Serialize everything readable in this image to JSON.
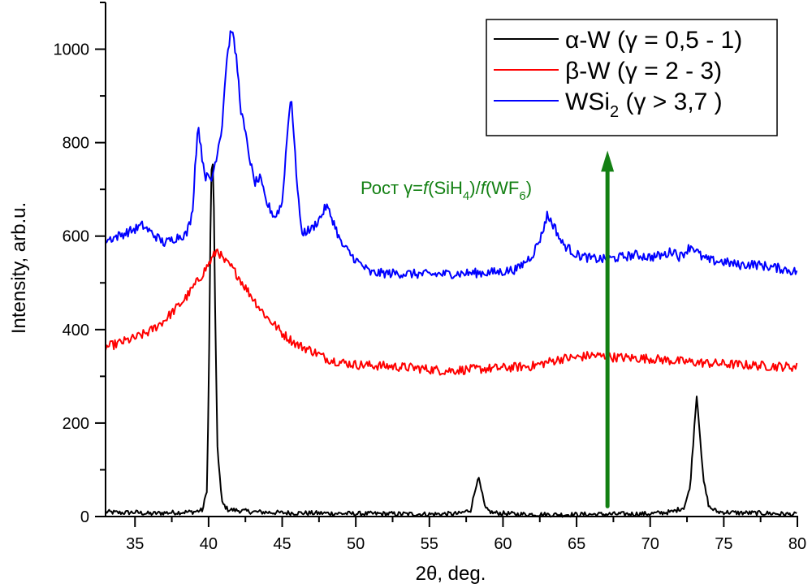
{
  "chart_data": {
    "type": "line",
    "title": "",
    "xlabel": "2θ, deg.",
    "ylabel": "Intensity, arb.u.",
    "xlim": [
      33,
      80
    ],
    "ylim": [
      0,
      1100
    ],
    "x_ticks": [
      35,
      40,
      45,
      50,
      55,
      60,
      65,
      70,
      75,
      80
    ],
    "x_tick_labels": [
      "35",
      "40",
      "45",
      "50",
      "55",
      "60",
      "65",
      "70",
      "75",
      "80"
    ],
    "y_ticks": [
      0,
      200,
      400,
      600,
      800,
      1000
    ],
    "y_tick_labels": [
      "0",
      "200",
      "400",
      "600",
      "800",
      "1000"
    ],
    "grid": false,
    "legend_position": "top-right",
    "series": [
      {
        "name": "α-W (γ = 0,5 - 1)",
        "legend_parts": {
          "main": "α-W (γ = 0,5 - 1)",
          "sub": "",
          "tail": ""
        },
        "color": "#000000",
        "x": [
          33,
          34,
          35,
          36,
          37,
          38,
          39,
          39.6,
          39.9,
          40.05,
          40.15,
          40.25,
          40.35,
          40.45,
          40.6,
          40.9,
          41.3,
          42,
          43,
          45,
          48,
          50,
          52,
          55,
          57,
          57.8,
          58.1,
          58.3,
          58.5,
          58.8,
          59.3,
          61,
          64,
          67,
          70,
          71.5,
          72.3,
          72.7,
          72.95,
          73.15,
          73.35,
          73.6,
          74,
          74.6,
          76,
          78,
          80
        ],
        "y": [
          10,
          8,
          9,
          6,
          8,
          9,
          10,
          14,
          60,
          380,
          700,
          778,
          690,
          420,
          150,
          30,
          15,
          13,
          10,
          8,
          7,
          6,
          6,
          5,
          6,
          14,
          55,
          86,
          60,
          16,
          8,
          5,
          4,
          5,
          6,
          10,
          20,
          60,
          170,
          262,
          190,
          80,
          20,
          10,
          8,
          7,
          4
        ]
      },
      {
        "name": "β-W (γ = 2 - 3)",
        "legend_parts": {
          "main": "β-W (γ = 2 - 3)",
          "sub": "",
          "tail": ""
        },
        "color": "#ff0000",
        "x": [
          33,
          34,
          35,
          36,
          37,
          38,
          38.5,
          39,
          39.5,
          40,
          40.3,
          40.6,
          41,
          41.5,
          42,
          42.5,
          43,
          43.5,
          44,
          44.5,
          45,
          45.5,
          46,
          47,
          48,
          49,
          50,
          52,
          54,
          56,
          58,
          60,
          62,
          63,
          64,
          65,
          66,
          67,
          68,
          70,
          72,
          74,
          76,
          78,
          80
        ],
        "y": [
          362,
          372,
          382,
          396,
          420,
          452,
          470,
          492,
          515,
          540,
          555,
          572,
          548,
          535,
          515,
          490,
          468,
          445,
          425,
          410,
          392,
          380,
          368,
          355,
          338,
          330,
          325,
          322,
          318,
          312,
          315,
          318,
          322,
          330,
          338,
          340,
          345,
          342,
          340,
          338,
          332,
          328,
          325,
          322,
          320
        ]
      },
      {
        "name": "WSi2 (γ > 3,7 )",
        "legend_parts": {
          "main": "WSi",
          "sub": "2",
          "tail": " (γ > 3,7 )"
        },
        "color": "#0000ff",
        "x": [
          33,
          34,
          35,
          35.5,
          36,
          37,
          38,
          38.5,
          38.9,
          39.1,
          39.3,
          39.5,
          39.8,
          40.2,
          40.5,
          40.9,
          41.2,
          41.55,
          41.9,
          42.2,
          42.6,
          43.1,
          43.5,
          43.9,
          44.5,
          45,
          45.3,
          45.6,
          45.9,
          46.3,
          47,
          47.6,
          48,
          48.5,
          49,
          50,
          51,
          53,
          55,
          57,
          59,
          60,
          61,
          62,
          62.6,
          63,
          63.5,
          64,
          65,
          66,
          67,
          68,
          69,
          70,
          71,
          71.6,
          72,
          72.8,
          73.5,
          74,
          75,
          76,
          77,
          78,
          79,
          80
        ],
        "y": [
          591,
          602,
          615,
          623,
          610,
          585,
          600,
          604,
          650,
          760,
          841,
          780,
          728,
          720,
          766,
          832,
          970,
          1047,
          978,
          870,
          801,
          714,
          723,
          674,
          640,
          671,
          800,
          909,
          760,
          607,
          615,
          640,
          665,
          630,
          584,
          549,
          521,
          520,
          518,
          520,
          522,
          524,
          530,
          560,
          600,
          645,
          620,
          585,
          560,
          552,
          550,
          555,
          560,
          555,
          560,
          570,
          555,
          580,
          555,
          548,
          545,
          538,
          540,
          535,
          530,
          523
        ]
      }
    ],
    "annotations": [
      {
        "type": "arrow",
        "direction": "up",
        "x": 67.1,
        "y_from": 22,
        "y_to": 783,
        "color": "#138013"
      },
      {
        "type": "text",
        "color": "#138013",
        "parts": [
          {
            "text": "Рост ",
            "style": "normal"
          },
          {
            "text": "γ",
            "style": "normal"
          },
          {
            "text": "=",
            "style": "normal"
          },
          {
            "text": "f",
            "style": "italic"
          },
          {
            "text": "(SiH",
            "style": "normal"
          },
          {
            "text": "4",
            "style": "sub"
          },
          {
            "text": ")/",
            "style": "normal"
          },
          {
            "text": "f",
            "style": "italic"
          },
          {
            "text": "(WF",
            "style": "normal"
          },
          {
            "text": "6",
            "style": "sub"
          },
          {
            "text": ")",
            "style": "normal"
          }
        ]
      }
    ]
  }
}
